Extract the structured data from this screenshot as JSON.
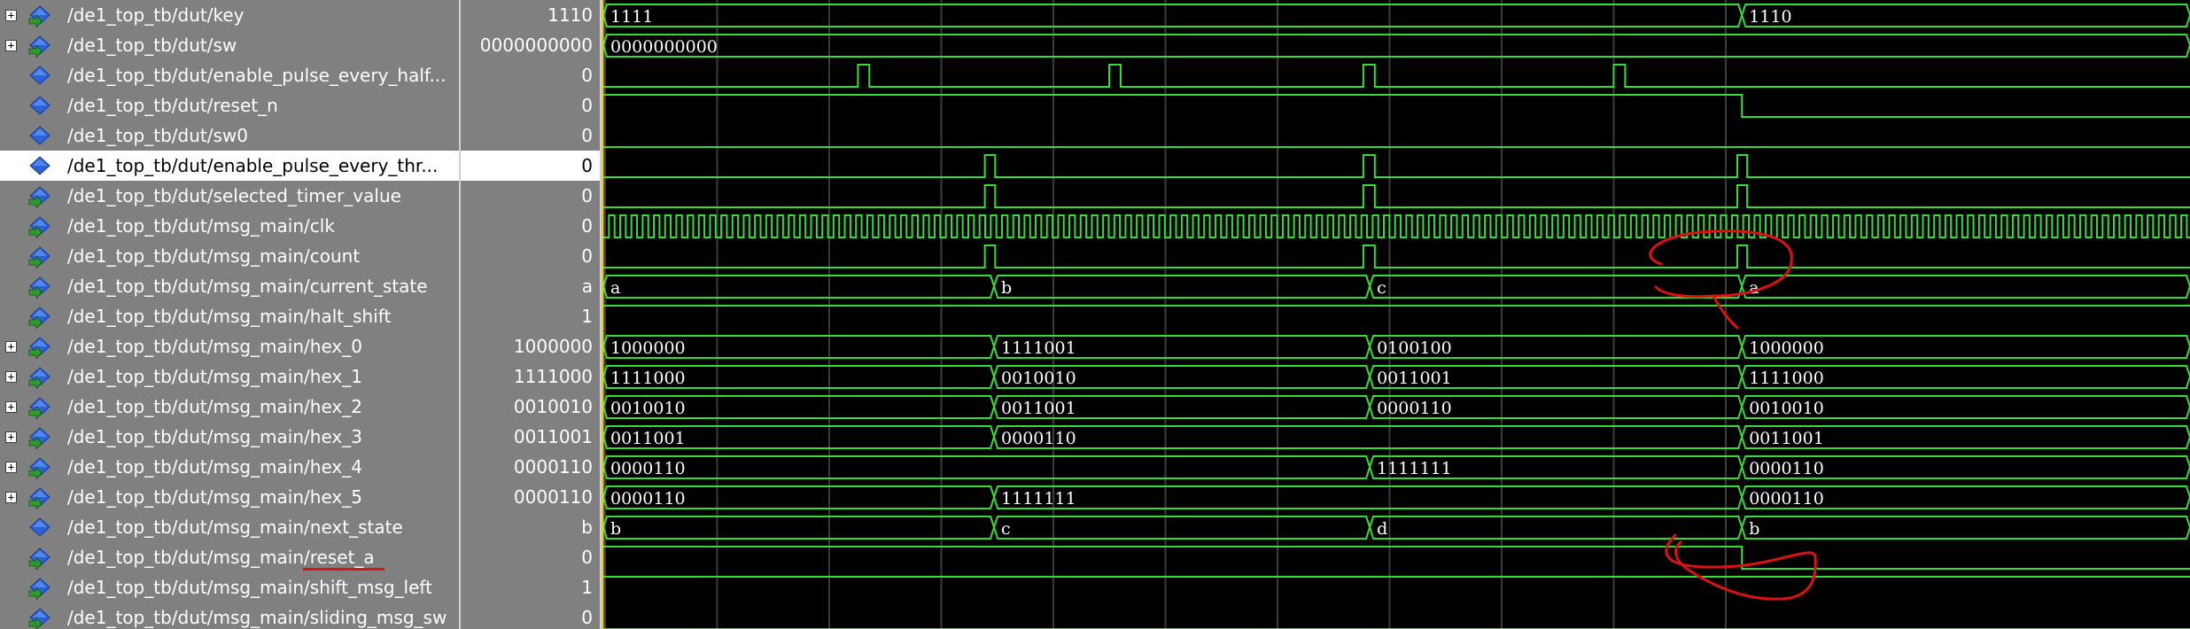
{
  "colors": {
    "wave": "#33dd33",
    "grid": "#3b3b3b",
    "annotation": "#dd1111",
    "cursor": "#e8d000",
    "pane": "#808080"
  },
  "signals": [
    {
      "name": "/de1_top_tb/dut/key",
      "value": "1110",
      "expandable": true,
      "icon": "bus-input-icon",
      "wave": {
        "kind": "bus",
        "segments": [
          {
            "t": 0,
            "label": "1111"
          },
          {
            "t": 0.7179,
            "label": "1110"
          }
        ]
      }
    },
    {
      "name": "/de1_top_tb/dut/sw",
      "value": "0000000000",
      "expandable": true,
      "icon": "bus-input-icon",
      "wave": {
        "kind": "bus",
        "segments": [
          {
            "t": 0,
            "label": "0000000000"
          }
        ]
      }
    },
    {
      "name": "/de1_top_tb/dut/enable_pulse_every_half...",
      "value": "0",
      "expandable": false,
      "icon": "signal-icon",
      "wave": {
        "kind": "bit",
        "init": 0,
        "pulses": [
          [
            0.1614,
            0.1686
          ],
          [
            0.3196,
            0.3268
          ],
          [
            0.4796,
            0.4868
          ],
          [
            0.6372,
            0.6444
          ]
        ]
      }
    },
    {
      "name": "/de1_top_tb/dut/reset_n",
      "value": "0",
      "expandable": false,
      "icon": "signal-icon",
      "wave": {
        "kind": "bit",
        "init": 1,
        "edges": [
          0.7179
        ]
      }
    },
    {
      "name": "/de1_top_tb/dut/sw0",
      "value": "0",
      "expandable": false,
      "icon": "signal-icon",
      "wave": {
        "kind": "bit",
        "init": 0,
        "edges": []
      }
    },
    {
      "name": "/de1_top_tb/dut/enable_pulse_every_thr...",
      "value": "0",
      "expandable": false,
      "icon": "signal-icon",
      "selected": true,
      "wave": {
        "kind": "bit",
        "init": 0,
        "pulses": [
          [
            0.2413,
            0.2478
          ],
          [
            0.4796,
            0.4868
          ],
          [
            0.715,
            0.7212
          ]
        ]
      }
    },
    {
      "name": "/de1_top_tb/dut/selected_timer_value",
      "value": "0",
      "expandable": false,
      "icon": "signal-input-icon",
      "wave": {
        "kind": "bit",
        "init": 0,
        "pulses": [
          [
            0.2413,
            0.2478
          ],
          [
            0.4796,
            0.4868
          ],
          [
            0.715,
            0.7212
          ]
        ]
      }
    },
    {
      "name": "/de1_top_tb/dut/msg_main/clk",
      "value": "0",
      "expandable": false,
      "icon": "signal-input-icon",
      "wave": {
        "kind": "clock",
        "period": 0.00707
      }
    },
    {
      "name": "/de1_top_tb/dut/msg_main/count",
      "value": "0",
      "expandable": false,
      "icon": "signal-input-icon",
      "wave": {
        "kind": "bit",
        "init": 0,
        "pulses": [
          [
            0.2413,
            0.2478
          ],
          [
            0.4796,
            0.4868
          ],
          [
            0.715,
            0.7212
          ]
        ]
      }
    },
    {
      "name": "/de1_top_tb/dut/msg_main/current_state",
      "value": "a",
      "expandable": false,
      "icon": "signal-input-icon",
      "wave": {
        "kind": "bus",
        "segments": [
          {
            "t": 0,
            "label": "a"
          },
          {
            "t": 0.2471,
            "label": "b"
          },
          {
            "t": 0.4836,
            "label": "c"
          },
          {
            "t": 0.7179,
            "label": "a"
          }
        ]
      }
    },
    {
      "name": "/de1_top_tb/dut/msg_main/halt_shift",
      "value": "1",
      "expandable": false,
      "icon": "signal-input-icon",
      "wave": {
        "kind": "bit",
        "init": 1,
        "edges": []
      }
    },
    {
      "name": "/de1_top_tb/dut/msg_main/hex_0",
      "value": "1000000",
      "expandable": true,
      "icon": "bus-input-icon",
      "wave": {
        "kind": "bus",
        "segments": [
          {
            "t": 0,
            "label": "1000000"
          },
          {
            "t": 0.2471,
            "label": "1111001"
          },
          {
            "t": 0.4836,
            "label": "0100100"
          },
          {
            "t": 0.7179,
            "label": "1000000"
          }
        ]
      }
    },
    {
      "name": "/de1_top_tb/dut/msg_main/hex_1",
      "value": "1111000",
      "expandable": true,
      "icon": "bus-input-icon",
      "wave": {
        "kind": "bus",
        "segments": [
          {
            "t": 0,
            "label": "1111000"
          },
          {
            "t": 0.2471,
            "label": "0010010"
          },
          {
            "t": 0.4836,
            "label": "0011001"
          },
          {
            "t": 0.7179,
            "label": "1111000"
          }
        ]
      }
    },
    {
      "name": "/de1_top_tb/dut/msg_main/hex_2",
      "value": "0010010",
      "expandable": true,
      "icon": "bus-input-icon",
      "wave": {
        "kind": "bus",
        "segments": [
          {
            "t": 0,
            "label": "0010010"
          },
          {
            "t": 0.2471,
            "label": "0011001"
          },
          {
            "t": 0.4836,
            "label": "0000110"
          },
          {
            "t": 0.7179,
            "label": "0010010"
          }
        ]
      }
    },
    {
      "name": "/de1_top_tb/dut/msg_main/hex_3",
      "value": "0011001",
      "expandable": true,
      "icon": "bus-input-icon",
      "wave": {
        "kind": "bus",
        "segments": [
          {
            "t": 0,
            "label": "0011001"
          },
          {
            "t": 0.2471,
            "label": "0000110"
          },
          {
            "t": 0.7179,
            "label": "0011001"
          }
        ]
      }
    },
    {
      "name": "/de1_top_tb/dut/msg_main/hex_4",
      "value": "0000110",
      "expandable": true,
      "icon": "bus-input-icon",
      "wave": {
        "kind": "bus",
        "segments": [
          {
            "t": 0,
            "label": "0000110"
          },
          {
            "t": 0.4836,
            "label": "1111111"
          },
          {
            "t": 0.7179,
            "label": "0000110"
          }
        ]
      }
    },
    {
      "name": "/de1_top_tb/dut/msg_main/hex_5",
      "value": "0000110",
      "expandable": true,
      "icon": "bus-input-icon",
      "wave": {
        "kind": "bus",
        "segments": [
          {
            "t": 0,
            "label": "0000110"
          },
          {
            "t": 0.2471,
            "label": "1111111"
          },
          {
            "t": 0.7179,
            "label": "0000110"
          }
        ]
      }
    },
    {
      "name": "/de1_top_tb/dut/msg_main/next_state",
      "value": "b",
      "expandable": false,
      "icon": "signal-icon",
      "wave": {
        "kind": "bus",
        "segments": [
          {
            "t": 0,
            "label": "b"
          },
          {
            "t": 0.2471,
            "label": "c"
          },
          {
            "t": 0.4836,
            "label": "d"
          },
          {
            "t": 0.7179,
            "label": "b"
          }
        ]
      }
    },
    {
      "name": "/de1_top_tb/dut/msg_main/reset_a",
      "value": "0",
      "expandable": false,
      "icon": "signal-input-icon",
      "underlined": true,
      "wave": {
        "kind": "bit",
        "init": 1,
        "edges": [
          0.7179
        ]
      }
    },
    {
      "name": "/de1_top_tb/dut/msg_main/shift_msg_left",
      "value": "1",
      "expandable": false,
      "icon": "signal-input-icon",
      "wave": {
        "kind": "bit",
        "init": 1,
        "edges": []
      }
    },
    {
      "name": "/de1_top_tb/dut/msg_main/sliding_msg_sw",
      "value": "0",
      "expandable": false,
      "icon": "signal-input-icon",
      "wave": {
        "kind": "bit",
        "init": 0,
        "edges": []
      }
    }
  ]
}
